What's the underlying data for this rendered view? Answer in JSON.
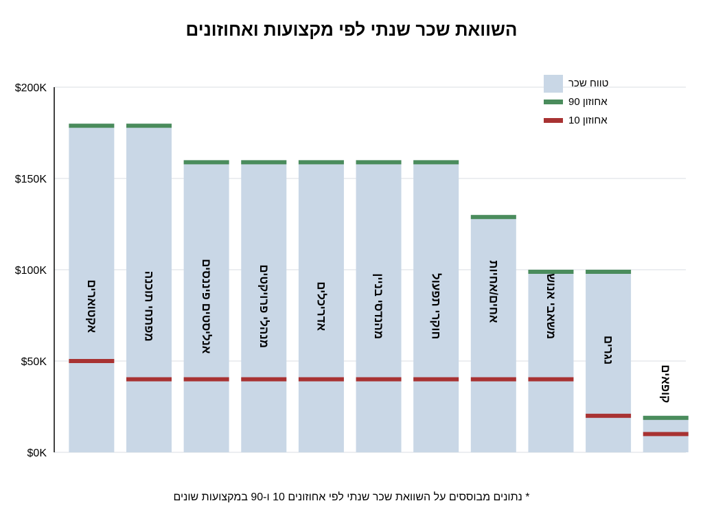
{
  "title": "השוואת שכר שנתי לפי מקצועות ואחוזונים",
  "footnote": "* נתונים מבוססים על השוואת שכר שנתי לפי אחוזונים 10 ו-90 במקצועות שונים",
  "legend": {
    "range_label": "טווח שכר",
    "p90_label": "אחוזון 90",
    "p10_label": "אחוזון 10"
  },
  "colors": {
    "range": "#c9d7e6",
    "p90": "#4a8c5c",
    "p10": "#a83232",
    "grid": "#d9dde3",
    "axis": "#000000"
  },
  "chart_data": {
    "type": "bar",
    "title": "השוואת שכר שנתי לפי מקצועות ואחוזונים",
    "xlabel": "",
    "ylabel": "",
    "ylim": [
      0,
      200000
    ],
    "y_ticks": [
      "$0K",
      "$50K",
      "$100K",
      "$150K",
      "$200K"
    ],
    "grid": true,
    "legend_position": "top-right",
    "categories": [
      "אקטוארים",
      "מפתחי תוכנה",
      "אנליסטים פיננסים",
      "מנהלי פרויקטים",
      "אדריכלים",
      "מהנדסי בניין",
      "חוקרי תפעול",
      "אחים/אחיות",
      "משאבי אנוש",
      "נגרים",
      "קופאים"
    ],
    "series": [
      {
        "name": "אחוזון 90",
        "values": [
          180000,
          180000,
          160000,
          160000,
          160000,
          160000,
          160000,
          130000,
          100000,
          100000,
          20000
        ]
      },
      {
        "name": "אחוזון 10",
        "values": [
          50000,
          40000,
          40000,
          40000,
          40000,
          40000,
          40000,
          40000,
          40000,
          20000,
          10000
        ]
      }
    ]
  }
}
